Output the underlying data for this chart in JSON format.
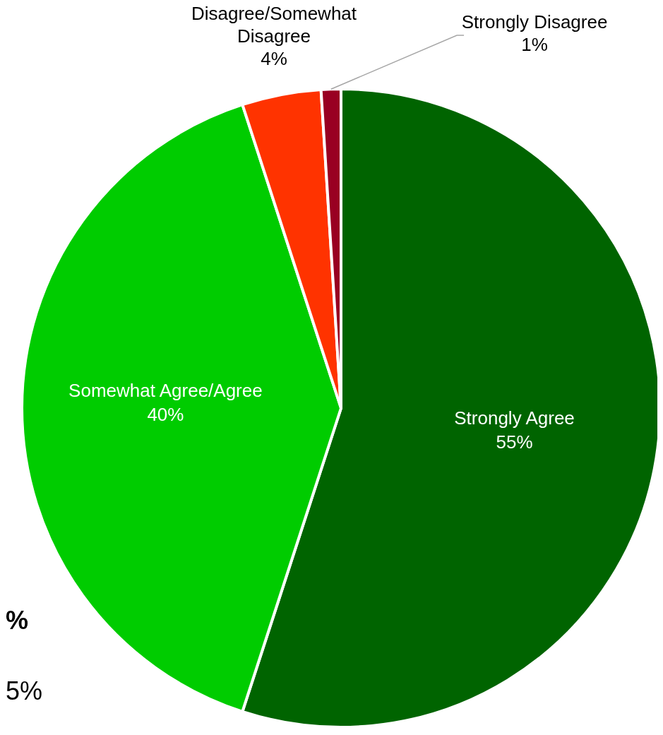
{
  "chart_data": {
    "type": "pie",
    "categories": [
      "Strongly Agree",
      "Somewhat Agree/Agree",
      "Disagree/Somewhat Disagree",
      "Strongly Disagree"
    ],
    "values": [
      55,
      40,
      4,
      1
    ],
    "colors": [
      "#006400",
      "#00cc00",
      "#ff3300",
      "#990022"
    ],
    "value_labels": [
      "55%",
      "40%",
      "4%",
      "1%"
    ],
    "annotations": [
      "%",
      "5%"
    ],
    "legend": false
  }
}
